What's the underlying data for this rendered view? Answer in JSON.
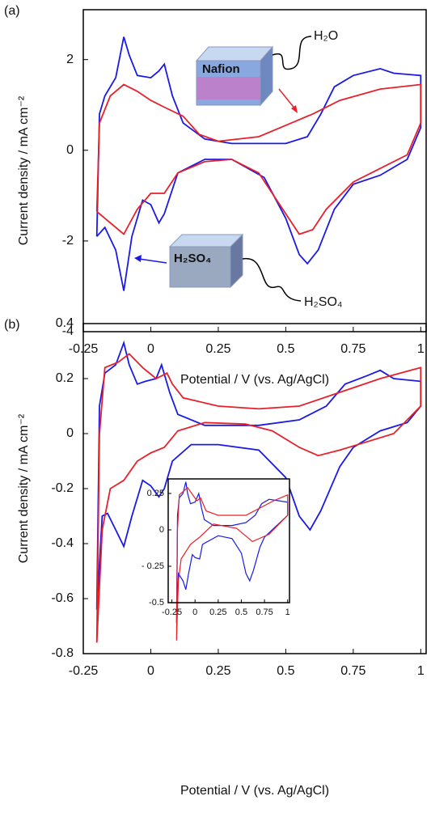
{
  "chart_data": [
    {
      "type": "line",
      "panel_label": "(a)",
      "x_label": "Potential / V (vs. Ag/AgCl)",
      "y_label": "Current density / mA cm⁻²",
      "annotations": [
        "H₂O",
        "Nafion",
        "H₂SO₄",
        "H₂SO₄"
      ],
      "xlim": [
        -0.25,
        1.02
      ],
      "ylim": [
        -4,
        3.1
      ],
      "xticks": [
        -0.25,
        0,
        0.25,
        0.5,
        0.75,
        1
      ],
      "yticks": [
        -4,
        -2,
        0,
        2
      ],
      "series": [
        {
          "color": "#1a1ae6",
          "x": [
            -0.2,
            -0.19,
            -0.17,
            -0.13,
            -0.1,
            -0.08,
            -0.05,
            0,
            0.03,
            0.05,
            0.08,
            0.12,
            0.2,
            0.3,
            0.5,
            0.58,
            0.63,
            0.68,
            0.75,
            0.85,
            0.9,
            1.0,
            1.0,
            0.95,
            0.85,
            0.75,
            0.68,
            0.62,
            0.58,
            0.55,
            0.5,
            0.42,
            0.3,
            0.2,
            0.1,
            0.05,
            0.03,
            0,
            -0.03,
            -0.07,
            -0.1,
            -0.13,
            -0.17,
            -0.2
          ],
          "values": [
            -1.9,
            0.8,
            1.2,
            1.6,
            2.5,
            2.1,
            1.65,
            1.6,
            1.75,
            1.9,
            1.2,
            0.6,
            0.25,
            0.15,
            0.15,
            0.3,
            0.8,
            1.4,
            1.65,
            1.8,
            1.7,
            1.65,
            0.5,
            -0.2,
            -0.55,
            -0.75,
            -1.3,
            -2.2,
            -2.5,
            -2.3,
            -1.5,
            -0.6,
            -0.2,
            -0.2,
            -0.5,
            -1.4,
            -1.6,
            -1.2,
            -1.1,
            -1.9,
            -3.1,
            -2.2,
            -1.7,
            -1.9
          ]
        },
        {
          "color": "#e8202a",
          "x": [
            -0.2,
            -0.19,
            -0.15,
            -0.1,
            -0.05,
            0,
            0.05,
            0.12,
            0.18,
            0.25,
            0.4,
            0.5,
            0.6,
            0.7,
            0.85,
            1.0,
            1.0,
            0.95,
            0.85,
            0.75,
            0.65,
            0.6,
            0.55,
            0.5,
            0.4,
            0.3,
            0.2,
            0.1,
            0.05,
            0,
            -0.05,
            -0.1,
            -0.15,
            -0.2
          ],
          "values": [
            -1.35,
            0.6,
            1.2,
            1.45,
            1.3,
            1.1,
            0.95,
            0.75,
            0.35,
            0.2,
            0.3,
            0.55,
            0.8,
            1.1,
            1.35,
            1.45,
            0.6,
            -0.1,
            -0.4,
            -0.7,
            -1.3,
            -1.75,
            -1.85,
            -1.4,
            -0.5,
            -0.2,
            -0.25,
            -0.5,
            -0.95,
            -0.95,
            -1.3,
            -1.85,
            -1.6,
            -1.35
          ]
        }
      ]
    },
    {
      "type": "line",
      "panel_label": "(b)",
      "x_label": "Potential / V (vs. Ag/AgCl)",
      "y_label": "Current density / mA cm⁻²",
      "xlim": [
        -0.25,
        1.02
      ],
      "ylim": [
        -0.8,
        0.4
      ],
      "xticks": [
        -0.25,
        0,
        0.25,
        0.5,
        0.75,
        1
      ],
      "yticks": [
        -0.8,
        -0.6,
        -0.4,
        -0.2,
        0,
        0.2,
        0.4
      ],
      "series": [
        {
          "color": "#1a1ae6",
          "x": [
            -0.2,
            -0.19,
            -0.17,
            -0.13,
            -0.1,
            -0.08,
            -0.05,
            -0.02,
            0.02,
            0.04,
            0.07,
            0.1,
            0.2,
            0.4,
            0.55,
            0.65,
            0.72,
            0.8,
            0.85,
            0.9,
            1.0,
            1.0,
            0.95,
            0.85,
            0.75,
            0.7,
            0.63,
            0.59,
            0.55,
            0.5,
            0.4,
            0.25,
            0.15,
            0.08,
            0.05,
            0.03,
            0,
            -0.03,
            -0.07,
            -0.1,
            -0.13,
            -0.16,
            -0.18,
            -0.2
          ],
          "values": [
            -0.64,
            0.1,
            0.22,
            0.25,
            0.33,
            0.25,
            0.18,
            0.19,
            0.2,
            0.25,
            0.15,
            0.07,
            0.03,
            0.03,
            0.05,
            0.1,
            0.18,
            0.21,
            0.23,
            0.2,
            0.19,
            0.1,
            0.04,
            0.01,
            -0.05,
            -0.12,
            -0.28,
            -0.35,
            -0.3,
            -0.16,
            -0.06,
            -0.04,
            -0.04,
            -0.1,
            -0.2,
            -0.23,
            -0.19,
            -0.17,
            -0.3,
            -0.41,
            -0.35,
            -0.29,
            -0.3,
            -0.64
          ]
        },
        {
          "color": "#e8202a",
          "x": [
            -0.2,
            -0.19,
            -0.17,
            -0.12,
            -0.08,
            -0.03,
            0.02,
            0.06,
            0.08,
            0.12,
            0.25,
            0.4,
            0.55,
            0.7,
            0.85,
            1.0,
            1.0,
            0.9,
            0.8,
            0.7,
            0.62,
            0.55,
            0.45,
            0.35,
            0.2,
            0.1,
            0.05,
            0,
            -0.05,
            -0.1,
            -0.15,
            -0.18,
            -0.2
          ],
          "values": [
            -0.76,
            0.0,
            0.24,
            0.26,
            0.29,
            0.24,
            0.2,
            0.22,
            0.18,
            0.13,
            0.1,
            0.09,
            0.1,
            0.15,
            0.2,
            0.24,
            0.1,
            0.0,
            -0.03,
            -0.06,
            -0.08,
            -0.05,
            0.01,
            0.035,
            0.04,
            0.01,
            -0.05,
            -0.07,
            -0.1,
            -0.17,
            -0.2,
            -0.35,
            -0.76
          ]
        }
      ]
    },
    {
      "type": "line",
      "xlim": [
        -0.29,
        1.02
      ],
      "ylim": [
        -0.5,
        0.35
      ],
      "xticks": [
        -0.25,
        0,
        0.25,
        0.5,
        0.75,
        1
      ],
      "yticks": [
        -0.5,
        {
          "value": -0.25,
          "label": "- 0.25"
        },
        0,
        0.25
      ],
      "series": [
        {
          "color": "#1a1ae6",
          "x": [
            -0.2,
            -0.19,
            -0.17,
            -0.13,
            -0.1,
            -0.08,
            -0.05,
            0,
            0.04,
            0.07,
            0.1,
            0.2,
            0.4,
            0.55,
            0.65,
            0.72,
            0.8,
            0.9,
            1.0,
            1.0,
            0.85,
            0.75,
            0.7,
            0.63,
            0.59,
            0.55,
            0.5,
            0.4,
            0.25,
            0.08,
            0.05,
            0,
            -0.03,
            -0.07,
            -0.1,
            -0.13,
            -0.18,
            -0.2
          ],
          "values": [
            -0.64,
            0.1,
            0.22,
            0.25,
            0.33,
            0.25,
            0.18,
            0.19,
            0.25,
            0.15,
            0.07,
            0.03,
            0.03,
            0.05,
            0.1,
            0.18,
            0.21,
            0.2,
            0.19,
            0.1,
            0.01,
            -0.05,
            -0.12,
            -0.28,
            -0.35,
            -0.3,
            -0.16,
            -0.06,
            -0.04,
            -0.1,
            -0.2,
            -0.19,
            -0.17,
            -0.3,
            -0.41,
            -0.35,
            -0.3,
            -0.64
          ]
        },
        {
          "color": "#e8202a",
          "x": [
            -0.2,
            -0.19,
            -0.17,
            -0.08,
            0.02,
            0.06,
            0.12,
            0.25,
            0.55,
            0.85,
            1.0,
            1.0,
            0.8,
            0.62,
            0.45,
            0.2,
            0.05,
            -0.05,
            -0.15,
            -0.18,
            -0.2
          ],
          "values": [
            -0.76,
            0.0,
            0.24,
            0.29,
            0.2,
            0.22,
            0.13,
            0.1,
            0.1,
            0.2,
            0.24,
            0.1,
            -0.03,
            -0.08,
            0.01,
            0.04,
            -0.05,
            -0.1,
            -0.2,
            -0.35,
            -0.76
          ]
        }
      ]
    }
  ]
}
